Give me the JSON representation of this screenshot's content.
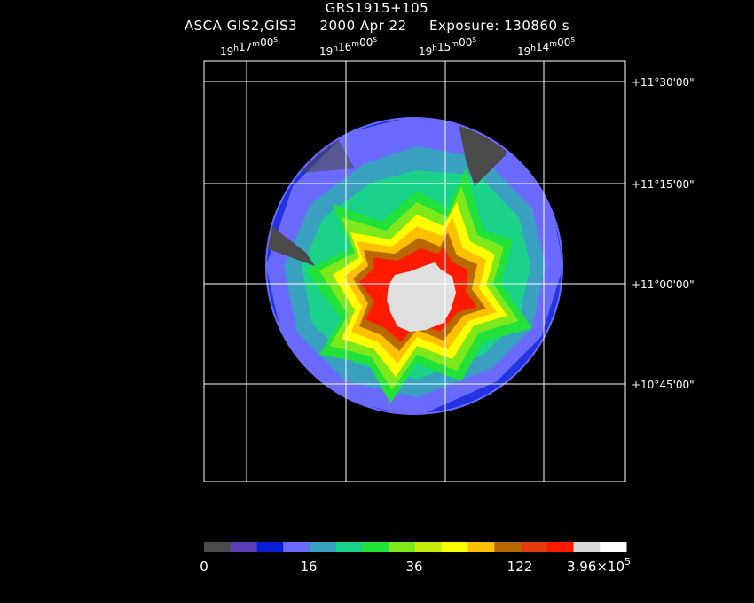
{
  "title": "GRS1915+105",
  "subtitle": {
    "instrument": "ASCA GIS2,GIS3",
    "date": "2000 Apr 22",
    "exposure": "Exposure: 130860 s"
  },
  "ra_ticks": [
    {
      "h": "19",
      "m": "17",
      "s": "00"
    },
    {
      "h": "19",
      "m": "16",
      "s": "00"
    },
    {
      "h": "19",
      "m": "15",
      "s": "00"
    },
    {
      "h": "19",
      "m": "14",
      "s": "00"
    }
  ],
  "dec_ticks": [
    "+11°30'00\"",
    "+11°15'00\"",
    "+11°00'00\"",
    "+10°45'00\""
  ],
  "colorbar": {
    "colors": [
      "#4a4a4a",
      "#5b3fb8",
      "#0a1ed8",
      "#6a6aff",
      "#3aa0c0",
      "#1ad28a",
      "#22e23a",
      "#7ee81a",
      "#c8ee10",
      "#ffff00",
      "#ffc000",
      "#b86a00",
      "#e63a10",
      "#ff1a00",
      "#d8d8d8",
      "#ffffff"
    ],
    "labels": [
      "0",
      "16",
      "36",
      "122",
      "3.96×10"
    ],
    "label_exponent": "5"
  }
}
